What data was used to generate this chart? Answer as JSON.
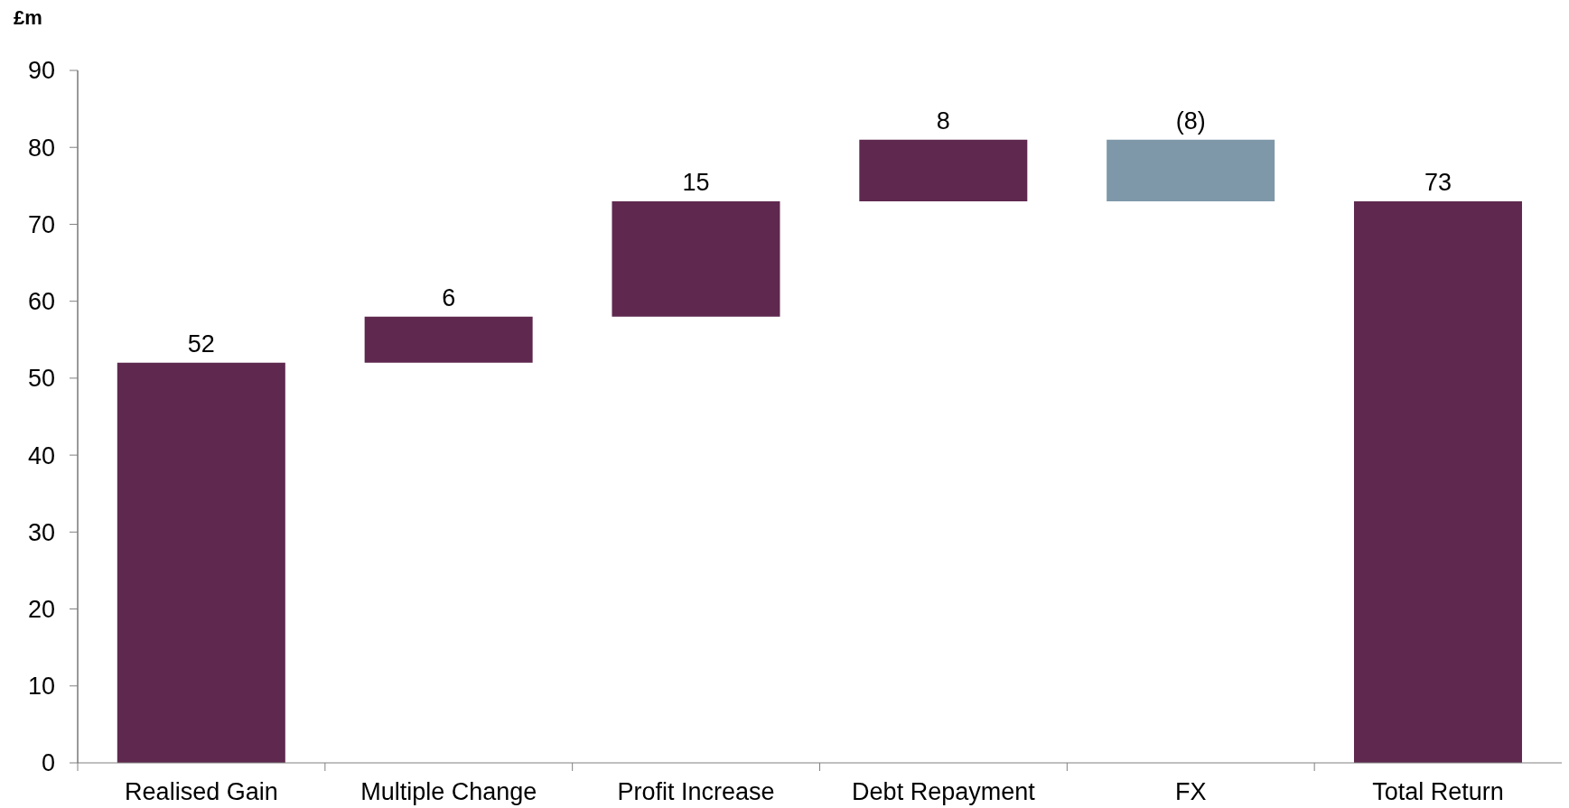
{
  "chart_data": {
    "type": "bar",
    "ylabel": "£m",
    "categories": [
      "Realised Gain",
      "Multiple Change",
      "Profit Increase",
      "Debt Repayment",
      "FX",
      "Total Return"
    ],
    "values": [
      52,
      6,
      15,
      8,
      -8,
      73
    ],
    "base": [
      0,
      52,
      58,
      73,
      81,
      0
    ],
    "colors": [
      "#5f284f",
      "#5f284f",
      "#5f284f",
      "#5f284f",
      "#7e98aa",
      "#5f284f"
    ],
    "value_labels": [
      "52",
      "6",
      "15",
      "8",
      "(8)",
      "73"
    ],
    "ylim": [
      0,
      90
    ],
    "yticks": [
      0,
      10,
      20,
      30,
      40,
      50,
      60,
      70,
      80,
      90
    ]
  }
}
